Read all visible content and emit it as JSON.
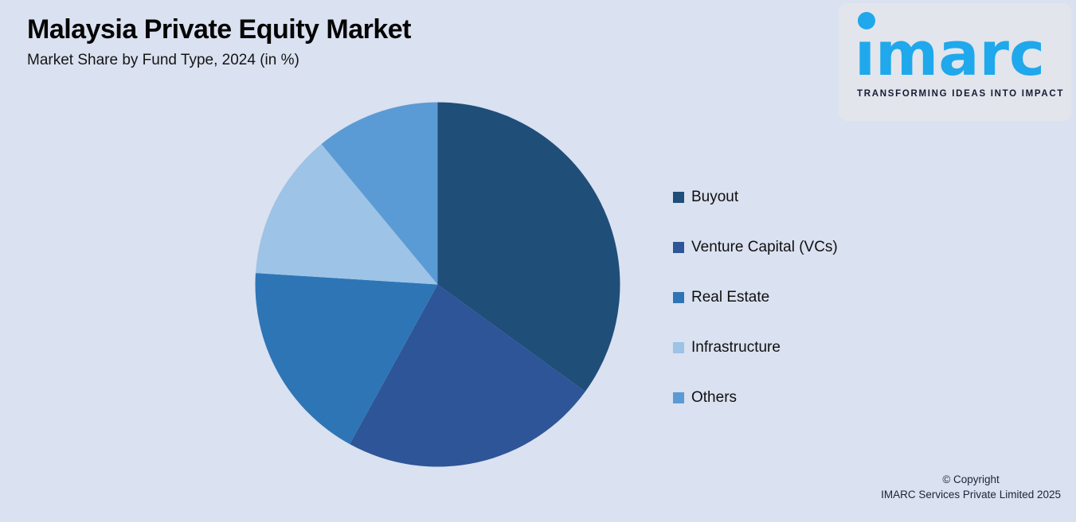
{
  "header": {
    "title": "Malaysia Private Equity Market",
    "subtitle": "Market Share by Fund Type, 2024 (in %)"
  },
  "logo": {
    "wordmark": "imarc",
    "tagline": "TRANSFORMING IDEAS INTO IMPACT",
    "brand_color": "#1FA8EC"
  },
  "chart_data": {
    "type": "pie",
    "title": "Malaysia Private Equity Market",
    "subtitle": "Market Share by Fund Type, 2024 (in %)",
    "unit": "%",
    "year": "2024",
    "legend_position": "right",
    "start_angle_deg": 0,
    "direction": "clockwise",
    "slices": [
      {
        "label": "Buyout",
        "value": 35,
        "color": "#1F4E79"
      },
      {
        "label": "Venture Capital (VCs)",
        "value": 23,
        "color": "#2E5597"
      },
      {
        "label": "Real Estate",
        "value": 18,
        "color": "#2E75B6"
      },
      {
        "label": "Infrastructure",
        "value": 13,
        "color": "#9DC3E6"
      },
      {
        "label": "Others",
        "value": 11,
        "color": "#5B9BD5"
      }
    ]
  },
  "footer": {
    "copyright_line1": "© Copyright",
    "copyright_line2": "IMARC Services Private Limited 2025"
  },
  "colors": {
    "background": "#DAE1F0",
    "logo_box": "#E2E5EC",
    "text": "#050505"
  }
}
